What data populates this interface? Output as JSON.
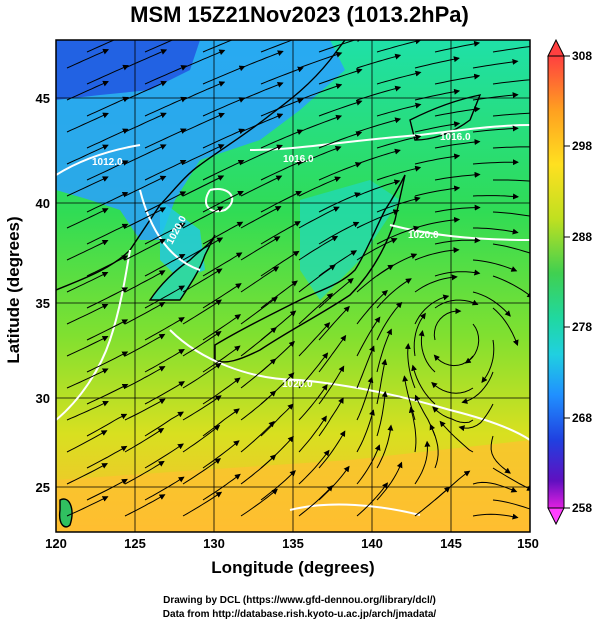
{
  "title": "MSM 15Z21Nov2023 (1013.2hPa)",
  "chart_data": {
    "type": "map",
    "xlabel": "Longitude (degrees)",
    "ylabel": "Latitude  (degrees)",
    "xlim": [
      120,
      150
    ],
    "ylim": [
      22.4,
      47.6
    ],
    "x_ticks": [
      "120",
      "125",
      "130",
      "135",
      "140",
      "145",
      "150"
    ],
    "y_ticks": [
      "25",
      "30",
      "35",
      "40",
      "45"
    ],
    "grid": true,
    "colorbar": {
      "ticks": [
        "308",
        "298",
        "288",
        "278",
        "268",
        "258"
      ],
      "range": [
        258,
        308
      ],
      "colors": [
        "#ff66ff",
        "#c000c0",
        "#2020d0",
        "#2090ff",
        "#20e0e0",
        "#20d070",
        "#60e040",
        "#c0e020",
        "#ffe020",
        "#ffb020",
        "#ff5020"
      ]
    },
    "isobar_labels": [
      "1012.0",
      "1016.0",
      "1020.0",
      "1016.0",
      "1020.0",
      "1020.0"
    ]
  },
  "credits": {
    "line1": "Drawing by DCL (https://www.gfd-dennou.org/library/dcl/)",
    "line2": "Data from http://database.rish.kyoto-u.ac.jp/arch/jmadata/"
  }
}
